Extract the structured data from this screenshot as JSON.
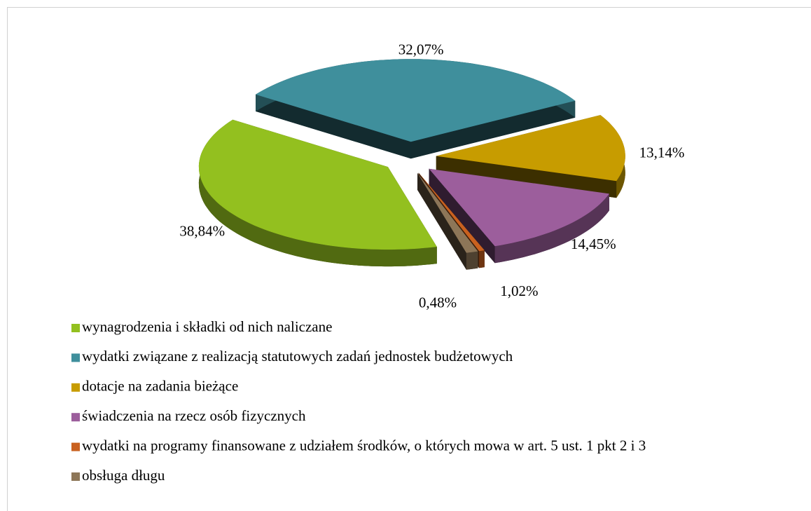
{
  "chart_data": {
    "type": "pie",
    "categories": [
      "wynagrodzenia i składki od nich naliczane",
      "wydatki związane z realizacją statutowych zadań jednostek budżetowych",
      "dotacje na zadania bieżące",
      "świadczenia na rzecz osób fizycznych",
      "wydatki na programy finansowane z udziałem środków, o których mowa w art. 5 ust. 1 pkt 2 i 3",
      "obsługa długu"
    ],
    "values": [
      38.84,
      32.07,
      13.14,
      14.45,
      0.48,
      1.02
    ],
    "value_labels": [
      "38,84%",
      "32,07%",
      "13,14%",
      "14,45%",
      "0,48%",
      "1,02%"
    ],
    "colors": [
      "#93c01f",
      "#3f8f9c",
      "#c79c00",
      "#9c5e9c",
      "#c9611f",
      "#8d7658"
    ],
    "legend": "bottom"
  }
}
